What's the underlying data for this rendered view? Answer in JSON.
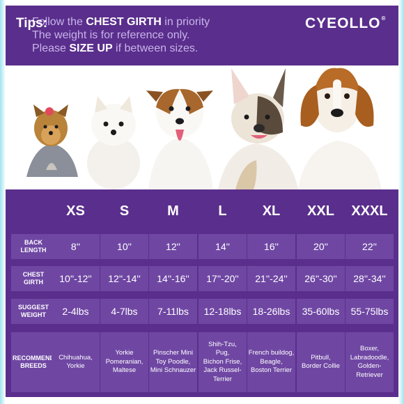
{
  "header": {
    "tips_label": "Tips:",
    "line1": {
      "pre": "Follow the ",
      "bold": "CHEST GIRTH",
      "post": " in priority"
    },
    "line2": "The weight is for reference only.",
    "line3": {
      "pre": "Please ",
      "bold": "SIZE UP",
      "post": " if between sizes."
    },
    "logo": "CYEOLLO",
    "logo_mark": "®"
  },
  "photo": {
    "dogs": [
      "Yorkshire terrier",
      "Pomeranian",
      "Jack Russell terrier",
      "French bulldog",
      "Beagle"
    ]
  },
  "table": {
    "sizes": [
      "XS",
      "S",
      "M",
      "L",
      "XL",
      "XXL",
      "XXXL"
    ],
    "rows": [
      {
        "label": "BACK\nLENGTH",
        "values": [
          "8''",
          "10''",
          "12''",
          "14''",
          "16''",
          "20''",
          "22''"
        ]
      },
      {
        "label": "CHEST\nGIRTH",
        "values": [
          "10''-12''",
          "12''-14''",
          "14''-16''",
          "17''-20''",
          "21''-24''",
          "26''-30''",
          "28''-34''"
        ]
      },
      {
        "label": "SUGGEST\nWEIGHT",
        "values": [
          "2-4lbs",
          "4-7lbs",
          "7-11lbs",
          "12-18lbs",
          "18-26lbs",
          "35-60lbs",
          "55-75lbs"
        ]
      },
      {
        "label": "RECOMMEND\nBREEDS",
        "values": [
          "Chihuahua,\nYorkie",
          "Yorkie\nPomeranian,\nMaltese",
          "Pinscher Mini\nToy Poodle,\nMini Schnauzer",
          "Shih-Tzu,\nPug,\nBichon Frise,\nJack Russel-\nTerrier",
          "French buildog,\nBeagle,\nBoston Terrier",
          "Pitbull,\nBorder Collie",
          "Boxer,\nLabradoodle,\nGolden-\nRetriever"
        ]
      }
    ]
  },
  "colors": {
    "panel": "#5a2e8c",
    "cell": "#6f47a3",
    "tip_text": "#c8b4ea"
  }
}
